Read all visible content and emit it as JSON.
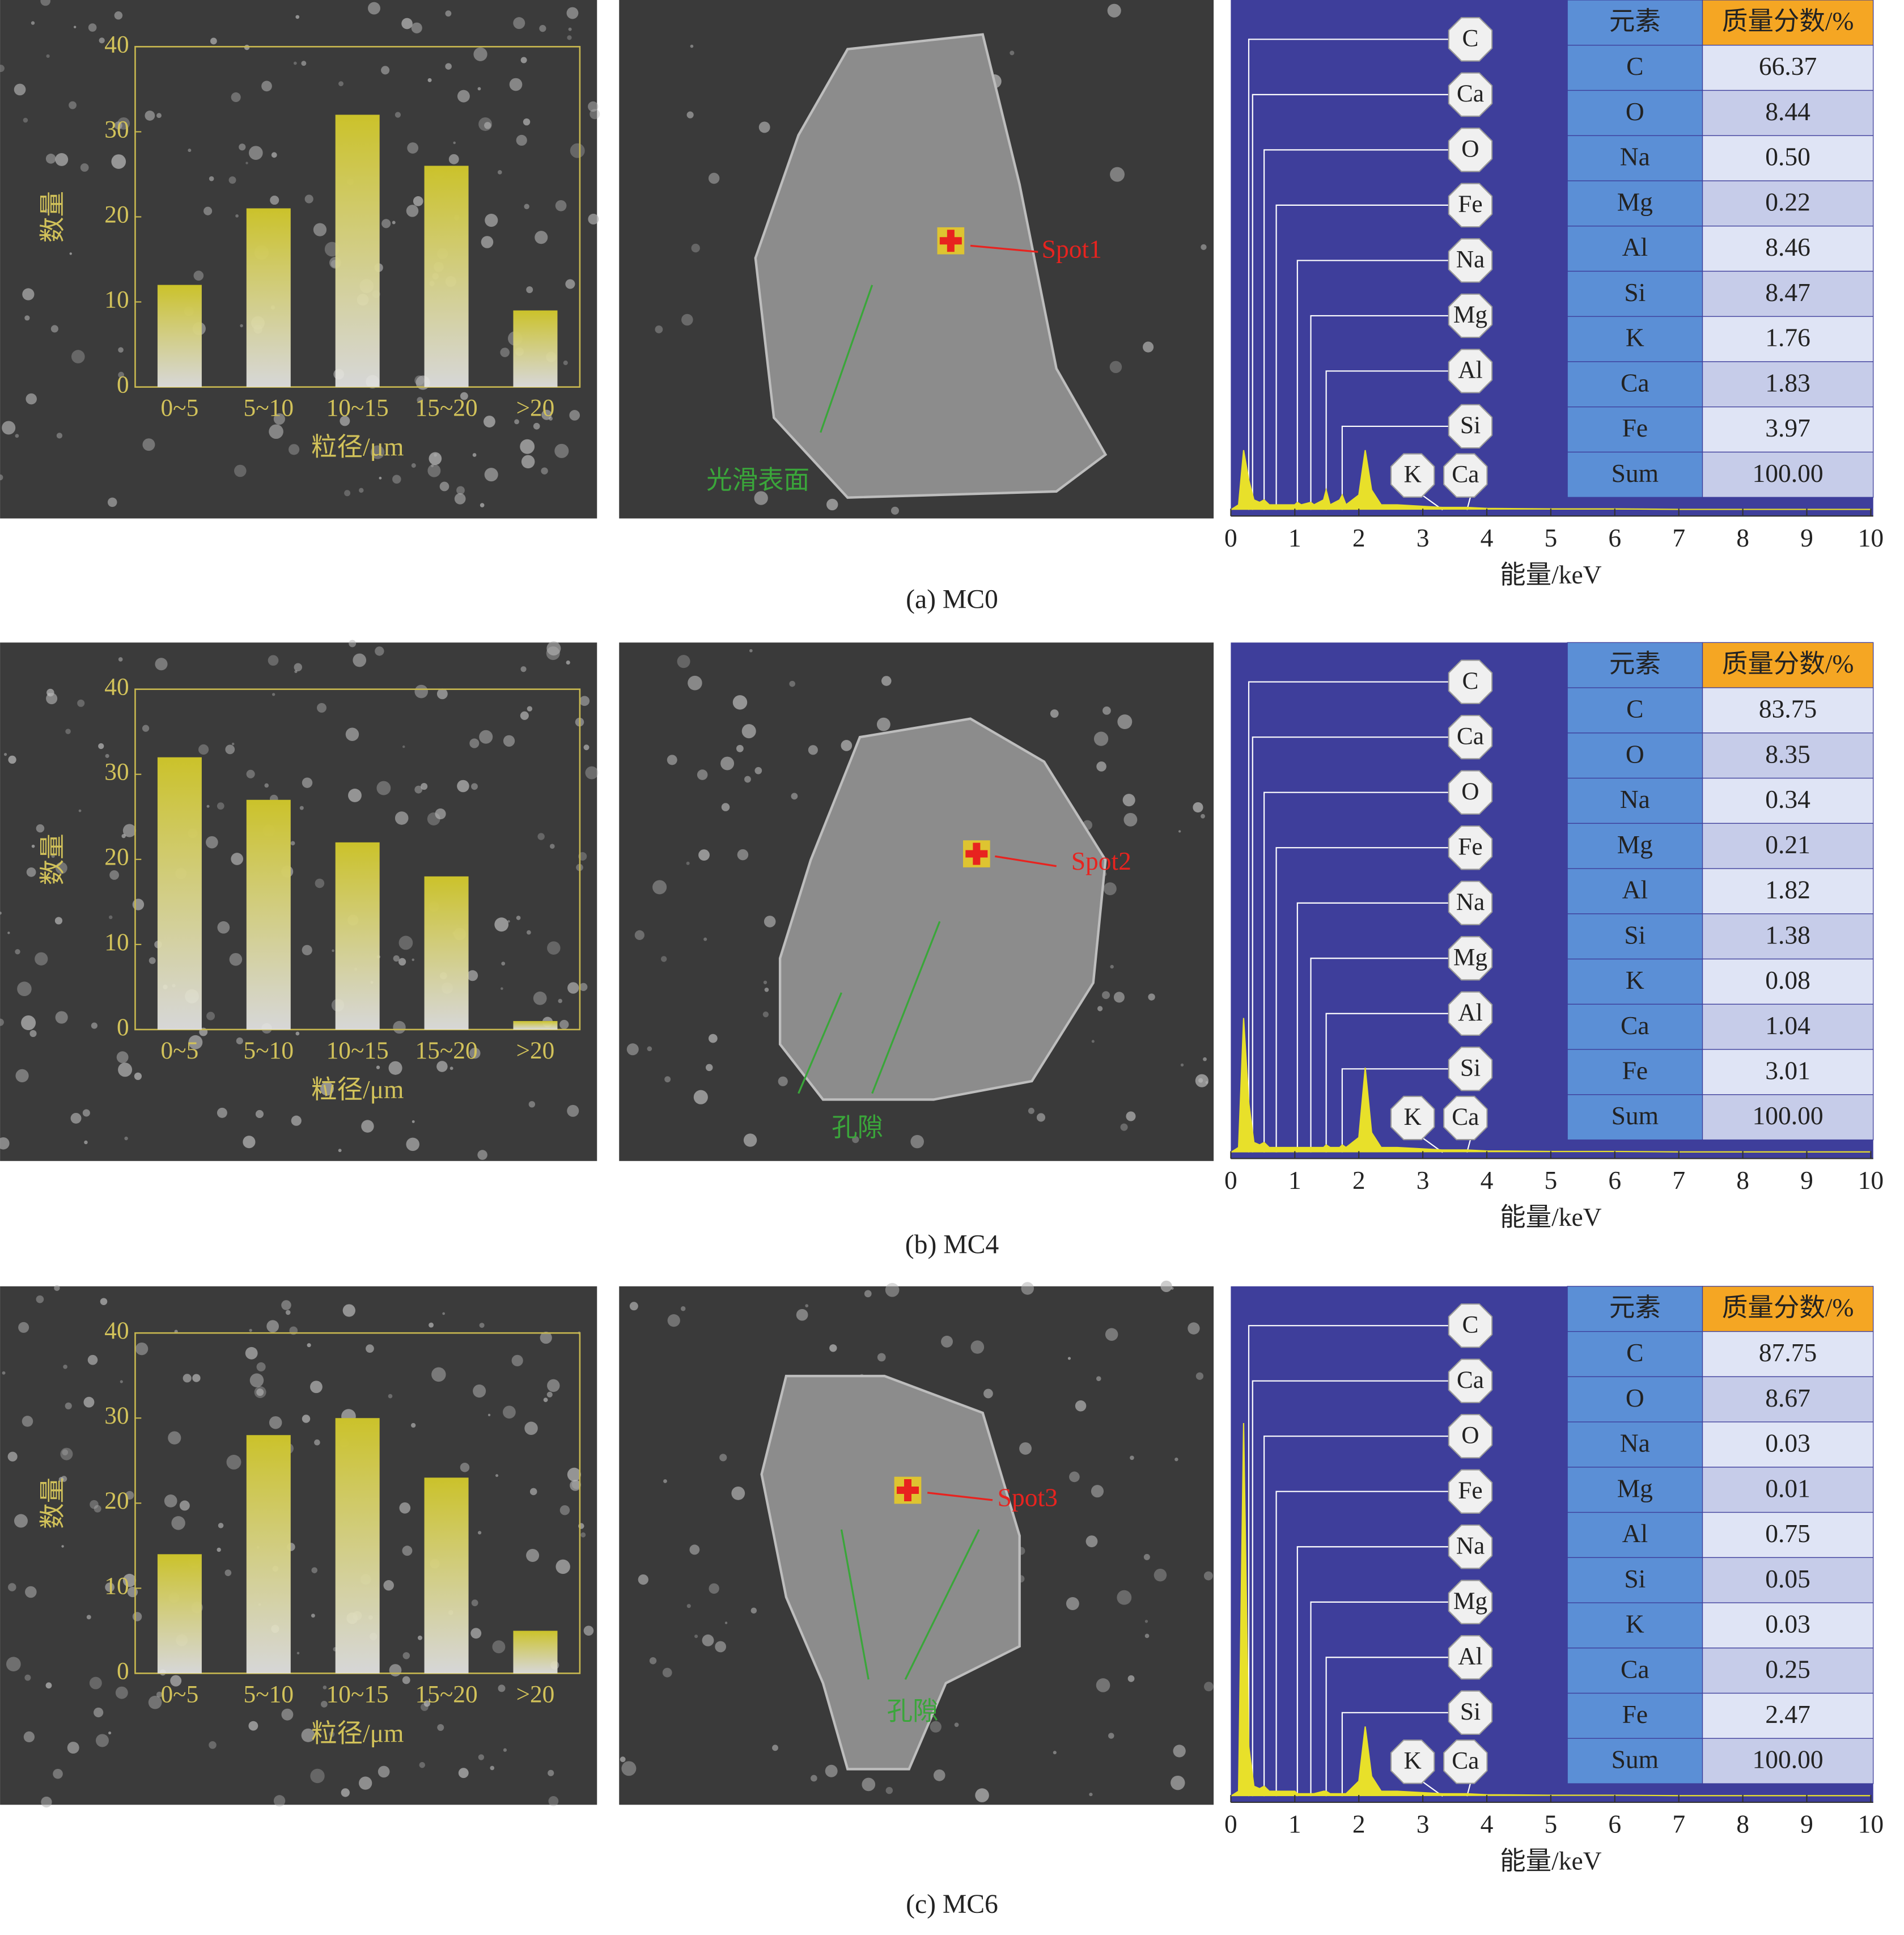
{
  "chart_data": [
    {
      "type": "bar",
      "categories": [
        "0~5",
        "5~10",
        "10~15",
        "15~20",
        ">20"
      ],
      "values": [
        12,
        21,
        32,
        26,
        9
      ],
      "color": "#cbc22a",
      "ylim": [
        0,
        40
      ],
      "yticks": [
        0,
        10,
        20,
        30,
        40
      ],
      "xlabel": "粒径/μm",
      "ylabel": "数量"
    },
    {
      "type": "line",
      "x": [
        0,
        0.12,
        0.2,
        0.28,
        0.36,
        0.45,
        0.52,
        0.6,
        0.75,
        1.0,
        1.04,
        1.1,
        1.25,
        1.3,
        1.45,
        1.49,
        1.55,
        1.7,
        1.74,
        1.8,
        2.0,
        2.1,
        2.2,
        2.35,
        2.6,
        3.3,
        3.69,
        4,
        5,
        6,
        7,
        8,
        9,
        10
      ],
      "values": [
        0,
        1,
        12,
        6,
        2,
        1.5,
        2,
        1,
        1,
        1,
        1.5,
        1,
        1.5,
        1,
        2,
        4,
        1,
        2,
        3,
        1,
        3,
        12,
        4,
        1,
        1,
        0.5,
        0.5,
        0.3,
        0.2,
        0.2,
        0.1,
        0.1,
        0.1,
        0.1
      ],
      "color": "#e8e02a",
      "xlim": [
        0,
        10
      ],
      "ylim": [
        0,
        100
      ],
      "xticks": [
        0,
        1,
        2,
        3,
        4,
        5,
        6,
        7,
        8,
        9,
        10
      ],
      "xlabel": "能量/keV",
      "peaks": [
        {
          "label": "C",
          "x": 0.28
        },
        {
          "label": "Ca",
          "x": 0.34
        },
        {
          "label": "O",
          "x": 0.52
        },
        {
          "label": "Fe",
          "x": 0.71
        },
        {
          "label": "Na",
          "x": 1.04
        },
        {
          "label": "Mg",
          "x": 1.25
        },
        {
          "label": "Al",
          "x": 1.49
        },
        {
          "label": "Si",
          "x": 1.74
        },
        {
          "label": "K",
          "x": 3.31
        },
        {
          "label": "Ca",
          "x": 3.69
        }
      ]
    },
    {
      "type": "bar",
      "categories": [
        "0~5",
        "5~10",
        "10~15",
        "15~20",
        ">20"
      ],
      "values": [
        32,
        27,
        22,
        18,
        1
      ],
      "color": "#cbc22a",
      "ylim": [
        0,
        40
      ],
      "yticks": [
        0,
        10,
        20,
        30,
        40
      ],
      "xlabel": "粒径/μm",
      "ylabel": "数量"
    },
    {
      "type": "line",
      "x": [
        0,
        0.12,
        0.2,
        0.28,
        0.36,
        0.45,
        0.52,
        0.6,
        0.75,
        1.0,
        1.04,
        1.1,
        1.25,
        1.3,
        1.45,
        1.49,
        1.55,
        1.7,
        1.74,
        1.8,
        2.0,
        2.1,
        2.2,
        2.35,
        2.6,
        3.3,
        3.69,
        4,
        5,
        6,
        7,
        8,
        9,
        10
      ],
      "values": [
        0,
        1,
        27,
        10,
        2,
        1.5,
        2,
        1,
        1,
        1,
        1,
        1,
        1,
        1,
        1,
        1.5,
        1,
        1,
        1.5,
        1,
        3,
        17,
        4,
        1,
        1,
        0.5,
        0.5,
        0.3,
        0.2,
        0.2,
        0.1,
        0.1,
        0.1,
        0.1
      ],
      "color": "#e8e02a",
      "xlim": [
        0,
        10
      ],
      "ylim": [
        0,
        100
      ],
      "xticks": [
        0,
        1,
        2,
        3,
        4,
        5,
        6,
        7,
        8,
        9,
        10
      ],
      "xlabel": "能量/keV",
      "peaks": [
        {
          "label": "C",
          "x": 0.28
        },
        {
          "label": "Ca",
          "x": 0.34
        },
        {
          "label": "O",
          "x": 0.52
        },
        {
          "label": "Fe",
          "x": 0.71
        },
        {
          "label": "Na",
          "x": 1.04
        },
        {
          "label": "Mg",
          "x": 1.25
        },
        {
          "label": "Al",
          "x": 1.49
        },
        {
          "label": "Si",
          "x": 1.74
        },
        {
          "label": "K",
          "x": 3.31
        },
        {
          "label": "Ca",
          "x": 3.69
        }
      ]
    },
    {
      "type": "bar",
      "categories": [
        "0~5",
        "5~10",
        "10~15",
        "15~20",
        ">20"
      ],
      "values": [
        14,
        28,
        30,
        23,
        5
      ],
      "color": "#cbc22a",
      "ylim": [
        0,
        40
      ],
      "yticks": [
        0,
        10,
        20,
        30,
        40
      ],
      "xlabel": "粒径/μm",
      "ylabel": "数量"
    },
    {
      "type": "line",
      "x": [
        0,
        0.12,
        0.2,
        0.28,
        0.36,
        0.45,
        0.52,
        0.6,
        0.75,
        1.0,
        1.04,
        1.1,
        1.25,
        1.3,
        1.45,
        1.49,
        1.55,
        1.7,
        1.74,
        1.8,
        2.0,
        2.1,
        2.2,
        2.35,
        2.6,
        3.3,
        3.69,
        4,
        5,
        6,
        7,
        8,
        9,
        10
      ],
      "values": [
        0,
        1,
        75,
        10,
        2,
        1.5,
        2,
        1,
        1,
        1,
        0.5,
        0.5,
        0.5,
        0.5,
        1,
        1,
        0.5,
        0.5,
        0.5,
        0.5,
        3,
        14,
        4,
        1,
        1,
        0.5,
        0.5,
        0.3,
        0.2,
        0.2,
        0.1,
        0.1,
        0.1,
        0.1
      ],
      "color": "#e8e02a",
      "xlim": [
        0,
        10
      ],
      "ylim": [
        0,
        100
      ],
      "xticks": [
        0,
        1,
        2,
        3,
        4,
        5,
        6,
        7,
        8,
        9,
        10
      ],
      "xlabel": "能量/keV",
      "peaks": [
        {
          "label": "C",
          "x": 0.28
        },
        {
          "label": "Ca",
          "x": 0.34
        },
        {
          "label": "O",
          "x": 0.52
        },
        {
          "label": "Fe",
          "x": 0.71
        },
        {
          "label": "Na",
          "x": 1.04
        },
        {
          "label": "Mg",
          "x": 1.25
        },
        {
          "label": "Al",
          "x": 1.49
        },
        {
          "label": "Si",
          "x": 1.74
        },
        {
          "label": "K",
          "x": 3.31
        },
        {
          "label": "Ca",
          "x": 3.69
        }
      ]
    }
  ],
  "panels": [
    {
      "caption": "(a) MC0",
      "sem": {
        "spot": "Spot1",
        "feature": "光滑表面"
      },
      "table": {
        "header": [
          "元素",
          "质量分数/%"
        ],
        "rows": [
          [
            "C",
            "66.37"
          ],
          [
            "O",
            "8.44"
          ],
          [
            "Na",
            "0.50"
          ],
          [
            "Mg",
            "0.22"
          ],
          [
            "Al",
            "8.46"
          ],
          [
            "Si",
            "8.47"
          ],
          [
            "K",
            "1.76"
          ],
          [
            "Ca",
            "1.83"
          ],
          [
            "Fe",
            "3.97"
          ],
          [
            "Sum",
            "100.00"
          ]
        ]
      }
    },
    {
      "caption": "(b) MC4",
      "sem": {
        "spot": "Spot2",
        "feature": "孔隙"
      },
      "table": {
        "header": [
          "元素",
          "质量分数/%"
        ],
        "rows": [
          [
            "C",
            "83.75"
          ],
          [
            "O",
            "8.35"
          ],
          [
            "Na",
            "0.34"
          ],
          [
            "Mg",
            "0.21"
          ],
          [
            "Al",
            "1.82"
          ],
          [
            "Si",
            "1.38"
          ],
          [
            "K",
            "0.08"
          ],
          [
            "Ca",
            "1.04"
          ],
          [
            "Fe",
            "3.01"
          ],
          [
            "Sum",
            "100.00"
          ]
        ]
      }
    },
    {
      "caption": "(c) MC6",
      "sem": {
        "spot": "Spot3",
        "feature": "孔隙"
      },
      "table": {
        "header": [
          "元素",
          "质量分数/%"
        ],
        "rows": [
          [
            "C",
            "87.75"
          ],
          [
            "O",
            "8.67"
          ],
          [
            "Na",
            "0.03"
          ],
          [
            "Mg",
            "0.01"
          ],
          [
            "Al",
            "0.75"
          ],
          [
            "Si",
            "0.05"
          ],
          [
            "K",
            "0.03"
          ],
          [
            "Ca",
            "0.25"
          ],
          [
            "Fe",
            "2.47"
          ],
          [
            "Sum",
            "100.00"
          ]
        ]
      }
    }
  ]
}
